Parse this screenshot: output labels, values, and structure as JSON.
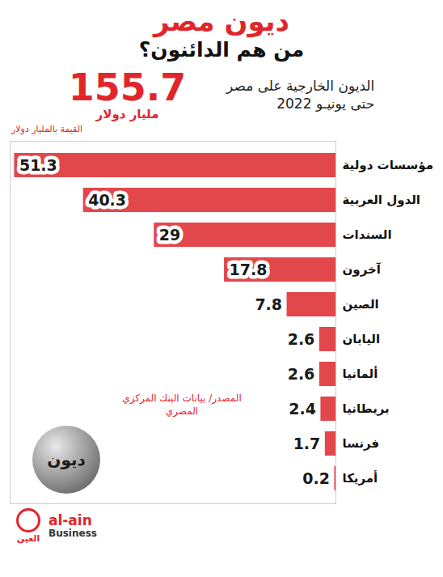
{
  "chart_data": {
    "type": "bar",
    "orientation": "horizontal",
    "title": "ديون مصر",
    "subtitle": "من هم الدائنون؟",
    "total": {
      "value": 155.7,
      "unit": "مليار دولار",
      "label": "الديون الخارجية على مصر حتى يونيـو 2022"
    },
    "axis_note": "القيمة بالمليار دولار",
    "categories": [
      "مؤسسات دولية",
      "الدول العربية",
      "السندات",
      "آخرون",
      "الصين",
      "اليابان",
      "ألمانيا",
      "بريطانيا",
      "فرنسا",
      "أمريكا"
    ],
    "values": [
      51.3,
      40.3,
      29,
      17.8,
      7.8,
      2.6,
      2.6,
      2.4,
      1.7,
      0.2
    ],
    "color": "#e2474b",
    "xlim": [
      0,
      52
    ],
    "data_labels": true,
    "tick_labels": "y",
    "grid": false,
    "source": "المصدر/ بيانات البنك المركزي المصري",
    "annotation": "ديون",
    "logo": {
      "name": "العين",
      "brand": "al-ain",
      "sub": "Business"
    }
  }
}
